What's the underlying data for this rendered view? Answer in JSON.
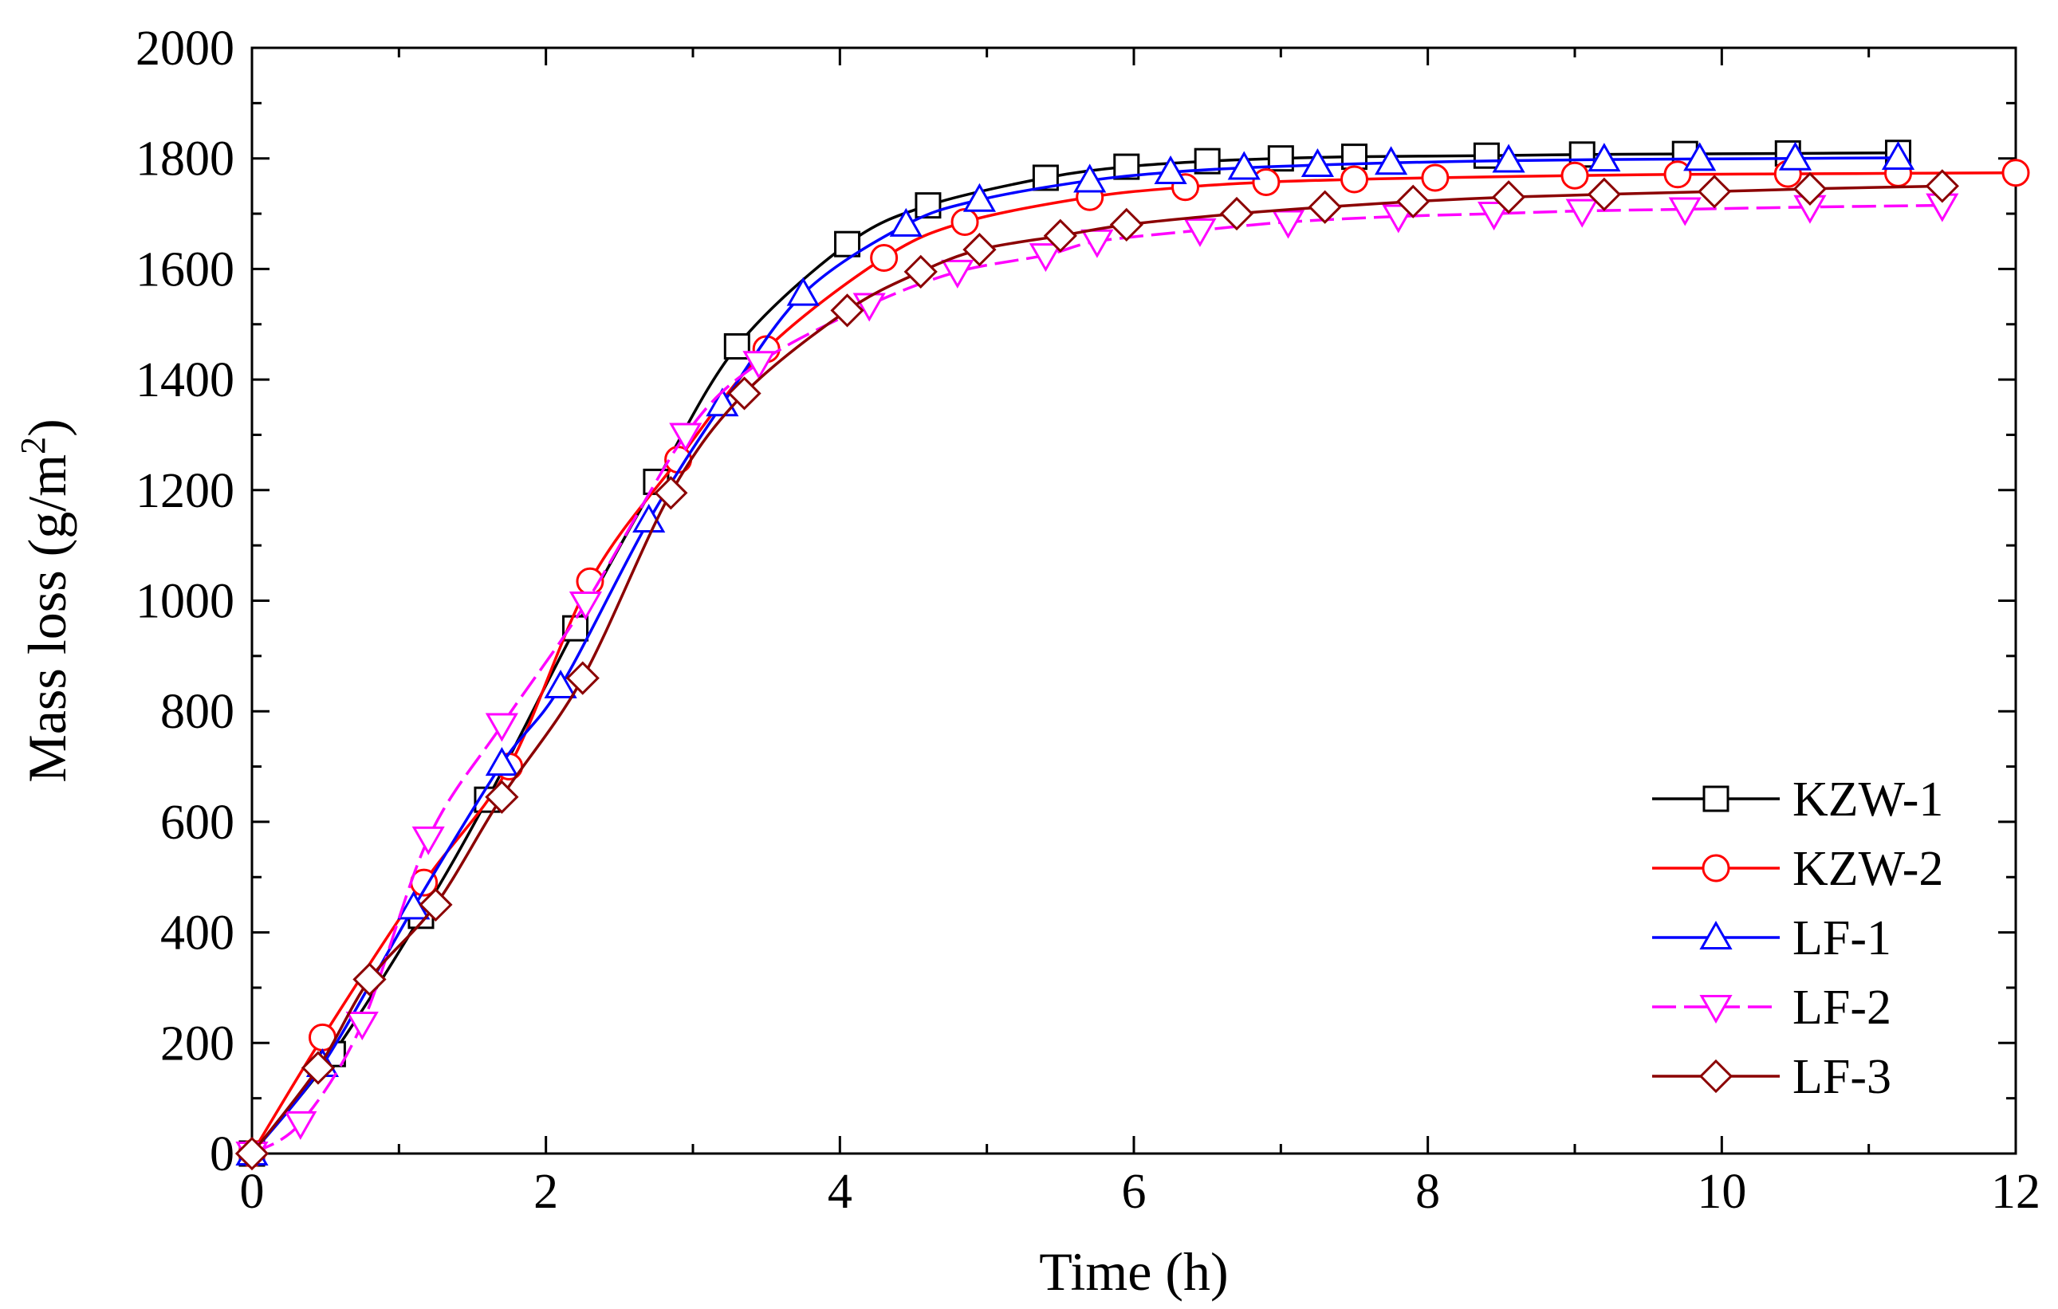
{
  "chart_data": {
    "type": "line",
    "title": "",
    "xlabel": "Time (h)",
    "ylabel": "Mass loss (g/m2)",
    "ylabel_parts": {
      "prefix": "Mass loss (g/m",
      "superscript": "2",
      "suffix": ")"
    },
    "xlim": [
      0,
      12
    ],
    "ylim": [
      0,
      2000
    ],
    "x_ticks": [
      0,
      2,
      4,
      6,
      8,
      10,
      12
    ],
    "x_tick_labels": [
      "0",
      "2",
      "4",
      "6",
      "8",
      "10",
      "12"
    ],
    "y_ticks": [
      0,
      200,
      400,
      600,
      800,
      1000,
      1200,
      1400,
      1600,
      1800,
      2000
    ],
    "y_tick_labels": [
      "0",
      "200",
      "400",
      "600",
      "800",
      "1000",
      "1200",
      "1400",
      "1600",
      "1800",
      "2000"
    ],
    "grid": false,
    "legend_position": "bottom-right",
    "series": [
      {
        "name": "KZW-1",
        "color": "#000000",
        "marker": "square",
        "dashed": false,
        "x": [
          0,
          0.55,
          1.15,
          1.6,
          2.2,
          2.75,
          3.3,
          4.05,
          4.6,
          5.4,
          5.95,
          6.5,
          7.0,
          7.5,
          8.4,
          9.05,
          9.75,
          10.45,
          11.2
        ],
        "y": [
          0,
          180,
          430,
          640,
          950,
          1215,
          1460,
          1645,
          1715,
          1765,
          1785,
          1795,
          1800,
          1803,
          1805,
          1807,
          1808,
          1809,
          1810
        ]
      },
      {
        "name": "KZW-2",
        "color": "#ff0000",
        "marker": "circle",
        "dashed": false,
        "x": [
          0,
          0.48,
          1.17,
          1.75,
          2.3,
          2.9,
          3.5,
          4.3,
          4.85,
          5.7,
          6.35,
          6.9,
          7.5,
          8.05,
          9.0,
          9.7,
          10.45,
          11.2,
          12.0
        ],
        "y": [
          0,
          210,
          490,
          700,
          1035,
          1255,
          1455,
          1620,
          1685,
          1730,
          1748,
          1757,
          1762,
          1765,
          1769,
          1771,
          1772,
          1773,
          1774
        ]
      },
      {
        "name": "LF-1",
        "color": "#0000ff",
        "marker": "triangle-up",
        "dashed": false,
        "x": [
          0,
          0.48,
          1.1,
          1.7,
          2.1,
          2.7,
          3.2,
          3.75,
          4.45,
          4.95,
          5.7,
          6.25,
          6.75,
          7.25,
          7.75,
          8.55,
          9.2,
          9.85,
          10.5,
          11.2
        ],
        "y": [
          0,
          160,
          445,
          705,
          845,
          1145,
          1355,
          1555,
          1680,
          1725,
          1760,
          1775,
          1783,
          1788,
          1792,
          1796,
          1798,
          1799,
          1800,
          1801
        ]
      },
      {
        "name": "LF-2",
        "color": "#ff00ff",
        "marker": "triangle-down",
        "dashed": true,
        "x": [
          0,
          0.33,
          0.75,
          1.2,
          1.7,
          2.27,
          2.95,
          3.45,
          4.2,
          4.8,
          5.4,
          5.75,
          6.45,
          7.05,
          7.8,
          8.45,
          9.05,
          9.75,
          10.6,
          11.5
        ],
        "y": [
          0,
          55,
          235,
          570,
          775,
          995,
          1300,
          1430,
          1535,
          1595,
          1625,
          1650,
          1670,
          1685,
          1695,
          1700,
          1705,
          1708,
          1712,
          1715
        ]
      },
      {
        "name": "LF-3",
        "color": "#8b0000",
        "marker": "diamond",
        "dashed": false,
        "x": [
          0,
          0.45,
          0.8,
          1.25,
          1.7,
          2.25,
          2.85,
          3.35,
          4.05,
          4.55,
          4.95,
          5.5,
          5.95,
          6.7,
          7.3,
          7.9,
          8.55,
          9.2,
          9.95,
          10.6,
          11.5
        ],
        "y": [
          0,
          155,
          315,
          450,
          645,
          860,
          1195,
          1375,
          1525,
          1595,
          1635,
          1660,
          1680,
          1700,
          1712,
          1722,
          1730,
          1735,
          1740,
          1745,
          1750
        ]
      }
    ]
  }
}
